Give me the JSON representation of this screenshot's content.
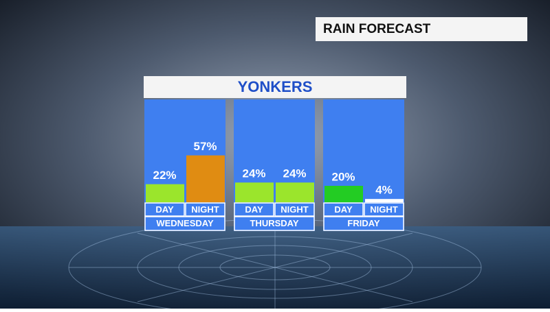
{
  "header": "RAIN FORECAST",
  "chart_data": {
    "type": "bar",
    "title": "YONKERS",
    "categories": [
      "WEDNESDAY",
      "THURSDAY",
      "FRIDAY"
    ],
    "series": [
      {
        "name": "DAY",
        "values": [
          22,
          24,
          20
        ],
        "value_labels": [
          "22%",
          "24%",
          "20%"
        ],
        "colors": [
          "#9be52c",
          "#9be52c",
          "#23cc23"
        ]
      },
      {
        "name": "NIGHT",
        "values": [
          57,
          24,
          4
        ],
        "value_labels": [
          "57%",
          "24%",
          "4%"
        ],
        "colors": [
          "#e08c12",
          "#9be52c",
          "#ffffff"
        ]
      }
    ]
  }
}
